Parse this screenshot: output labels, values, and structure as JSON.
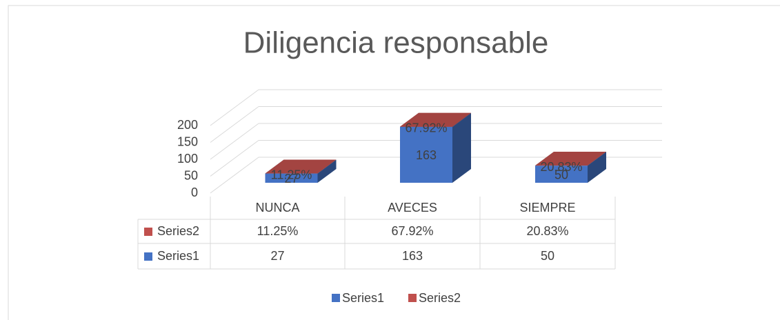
{
  "chart_data": {
    "type": "bar3d_stacked",
    "title": "Diligencia responsable",
    "categories": [
      "NUNCA",
      "AVECES",
      "SIEMPRE"
    ],
    "series": [
      {
        "name": "Series1",
        "color": "#4472c4",
        "values": [
          27,
          163,
          50
        ]
      },
      {
        "name": "Series2",
        "color": "#c0504d",
        "values": [
          0.1125,
          0.6792,
          0.2083
        ],
        "value_labels": [
          "11.25%",
          "67.92%",
          "20.83%"
        ]
      }
    ],
    "ylim": [
      0,
      200
    ],
    "yticks": [
      0,
      50,
      100,
      150,
      200
    ],
    "grid": true,
    "legend": "bottom",
    "data_table": true
  }
}
